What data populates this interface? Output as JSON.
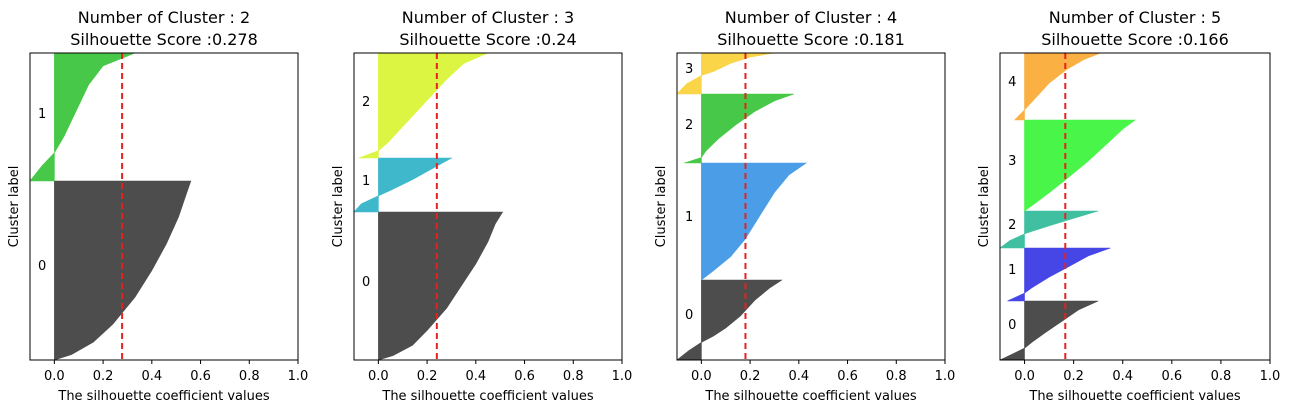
{
  "chart_data": [
    {
      "type": "area",
      "title": "Number of Cluster : 2\nSilhouette Score :0.278",
      "xlabel": "The silhouette coefficient values",
      "ylabel": "Cluster label",
      "xlim": [
        -0.1,
        1.0
      ],
      "xticks": [
        "0.0",
        "0.2",
        "0.4",
        "0.6",
        "0.8",
        "1.0"
      ],
      "avg_score": 0.278,
      "clusters": [
        {
          "label": "0",
          "color": "#4d4d4d",
          "profile": [
            [
              0.0,
              0.56
            ],
            [
              0.08,
              0.54
            ],
            [
              0.2,
              0.51
            ],
            [
              0.35,
              0.46
            ],
            [
              0.5,
              0.4
            ],
            [
              0.65,
              0.33
            ],
            [
              0.8,
              0.24
            ],
            [
              0.9,
              0.16
            ],
            [
              0.97,
              0.07
            ],
            [
              1.0,
              0.0
            ]
          ]
        },
        {
          "label": "1",
          "color": "#48c848",
          "profile": [
            [
              0.0,
              0.33
            ],
            [
              0.1,
              0.2
            ],
            [
              0.25,
              0.14
            ],
            [
              0.45,
              0.09
            ],
            [
              0.65,
              0.04
            ],
            [
              0.78,
              0.0
            ],
            [
              0.88,
              -0.05
            ],
            [
              1.0,
              -0.1
            ]
          ]
        }
      ]
    },
    {
      "type": "area",
      "title": "Number of Cluster : 3\nSilhouette Score :0.24",
      "xlabel": "The silhouette coefficient values",
      "ylabel": "Cluster label",
      "xlim": [
        -0.1,
        1.0
      ],
      "xticks": [
        "0.0",
        "0.2",
        "0.4",
        "0.6",
        "0.8",
        "1.0"
      ],
      "avg_score": 0.24,
      "clusters": [
        {
          "label": "0",
          "color": "#4d4d4d",
          "profile": [
            [
              0.0,
              0.51
            ],
            [
              0.08,
              0.48
            ],
            [
              0.2,
              0.45
            ],
            [
              0.35,
              0.4
            ],
            [
              0.5,
              0.34
            ],
            [
              0.65,
              0.28
            ],
            [
              0.8,
              0.2
            ],
            [
              0.9,
              0.14
            ],
            [
              0.97,
              0.06
            ],
            [
              1.0,
              0.0
            ]
          ]
        },
        {
          "label": "1",
          "color": "#3fb8cc",
          "profile": [
            [
              0.0,
              0.3
            ],
            [
              0.2,
              0.22
            ],
            [
              0.4,
              0.14
            ],
            [
              0.6,
              0.05
            ],
            [
              0.7,
              0.0
            ],
            [
              0.85,
              -0.07
            ],
            [
              1.0,
              -0.1
            ]
          ]
        },
        {
          "label": "2",
          "color": "#dcf542",
          "profile": [
            [
              0.0,
              0.45
            ],
            [
              0.1,
              0.35
            ],
            [
              0.25,
              0.28
            ],
            [
              0.45,
              0.2
            ],
            [
              0.65,
              0.12
            ],
            [
              0.85,
              0.04
            ],
            [
              0.93,
              0.0
            ],
            [
              1.0,
              -0.08
            ]
          ]
        }
      ]
    },
    {
      "type": "area",
      "title": "Number of Cluster : 4\nSilhouette Score :0.181",
      "xlabel": "The silhouette coefficient values",
      "ylabel": "Cluster label",
      "xlim": [
        -0.1,
        1.0
      ],
      "xticks": [
        "0.0",
        "0.2",
        "0.4",
        "0.6",
        "0.8",
        "1.0"
      ],
      "avg_score": 0.181,
      "clusters": [
        {
          "label": "0",
          "color": "#4d4d4d",
          "profile": [
            [
              0.0,
              0.33
            ],
            [
              0.1,
              0.28
            ],
            [
              0.25,
              0.22
            ],
            [
              0.45,
              0.16
            ],
            [
              0.6,
              0.1
            ],
            [
              0.7,
              0.05
            ],
            [
              0.78,
              0.0
            ],
            [
              0.88,
              -0.05
            ],
            [
              1.0,
              -0.1
            ]
          ]
        },
        {
          "label": "1",
          "color": "#4a9de6",
          "profile": [
            [
              0.0,
              0.43
            ],
            [
              0.1,
              0.36
            ],
            [
              0.25,
              0.3
            ],
            [
              0.45,
              0.24
            ],
            [
              0.65,
              0.18
            ],
            [
              0.8,
              0.12
            ],
            [
              0.92,
              0.05
            ],
            [
              1.0,
              0.0
            ]
          ]
        },
        {
          "label": "2",
          "color": "#48c848",
          "profile": [
            [
              0.0,
              0.38
            ],
            [
              0.1,
              0.3
            ],
            [
              0.25,
              0.22
            ],
            [
              0.45,
              0.14
            ],
            [
              0.65,
              0.07
            ],
            [
              0.82,
              0.02
            ],
            [
              0.92,
              0.0
            ],
            [
              1.0,
              -0.07
            ]
          ]
        },
        {
          "label": "3",
          "color": "#fbd548",
          "profile": [
            [
              0.0,
              0.3
            ],
            [
              0.1,
              0.2
            ],
            [
              0.25,
              0.12
            ],
            [
              0.45,
              0.05
            ],
            [
              0.55,
              0.0
            ],
            [
              0.75,
              -0.06
            ],
            [
              1.0,
              -0.1
            ]
          ]
        }
      ]
    },
    {
      "type": "area",
      "title": "Number of Cluster : 5\nSilhouette Score :0.166",
      "xlabel": "The silhouette coefficient values",
      "ylabel": "Cluster label",
      "xlim": [
        -0.1,
        1.0
      ],
      "xticks": [
        "0.0",
        "0.2",
        "0.4",
        "0.6",
        "0.8",
        "1.0"
      ],
      "avg_score": 0.166,
      "clusters": [
        {
          "label": "0",
          "color": "#4d4d4d",
          "profile": [
            [
              0.0,
              0.3
            ],
            [
              0.15,
              0.22
            ],
            [
              0.35,
              0.15
            ],
            [
              0.55,
              0.08
            ],
            [
              0.7,
              0.03
            ],
            [
              0.8,
              0.0
            ],
            [
              0.9,
              -0.05
            ],
            [
              1.0,
              -0.1
            ]
          ]
        },
        {
          "label": "1",
          "color": "#4646e6",
          "profile": [
            [
              0.0,
              0.35
            ],
            [
              0.15,
              0.26
            ],
            [
              0.35,
              0.18
            ],
            [
              0.55,
              0.1
            ],
            [
              0.75,
              0.03
            ],
            [
              0.85,
              0.0
            ],
            [
              1.0,
              -0.07
            ]
          ]
        },
        {
          "label": "2",
          "color": "#40c0a0",
          "profile": [
            [
              0.0,
              0.3
            ],
            [
              0.2,
              0.2
            ],
            [
              0.4,
              0.1
            ],
            [
              0.55,
              0.03
            ],
            [
              0.62,
              0.0
            ],
            [
              0.8,
              -0.06
            ],
            [
              1.0,
              -0.1
            ]
          ]
        },
        {
          "label": "3",
          "color": "#48f548",
          "profile": [
            [
              0.0,
              0.45
            ],
            [
              0.1,
              0.4
            ],
            [
              0.25,
              0.34
            ],
            [
              0.45,
              0.26
            ],
            [
              0.65,
              0.17
            ],
            [
              0.8,
              0.1
            ],
            [
              0.92,
              0.04
            ],
            [
              1.0,
              0.0
            ]
          ]
        },
        {
          "label": "4",
          "color": "#fbb044",
          "profile": [
            [
              0.0,
              0.31
            ],
            [
              0.1,
              0.24
            ],
            [
              0.25,
              0.17
            ],
            [
              0.45,
              0.1
            ],
            [
              0.65,
              0.05
            ],
            [
              0.85,
              0.0
            ],
            [
              1.0,
              -0.04
            ]
          ]
        }
      ]
    }
  ]
}
